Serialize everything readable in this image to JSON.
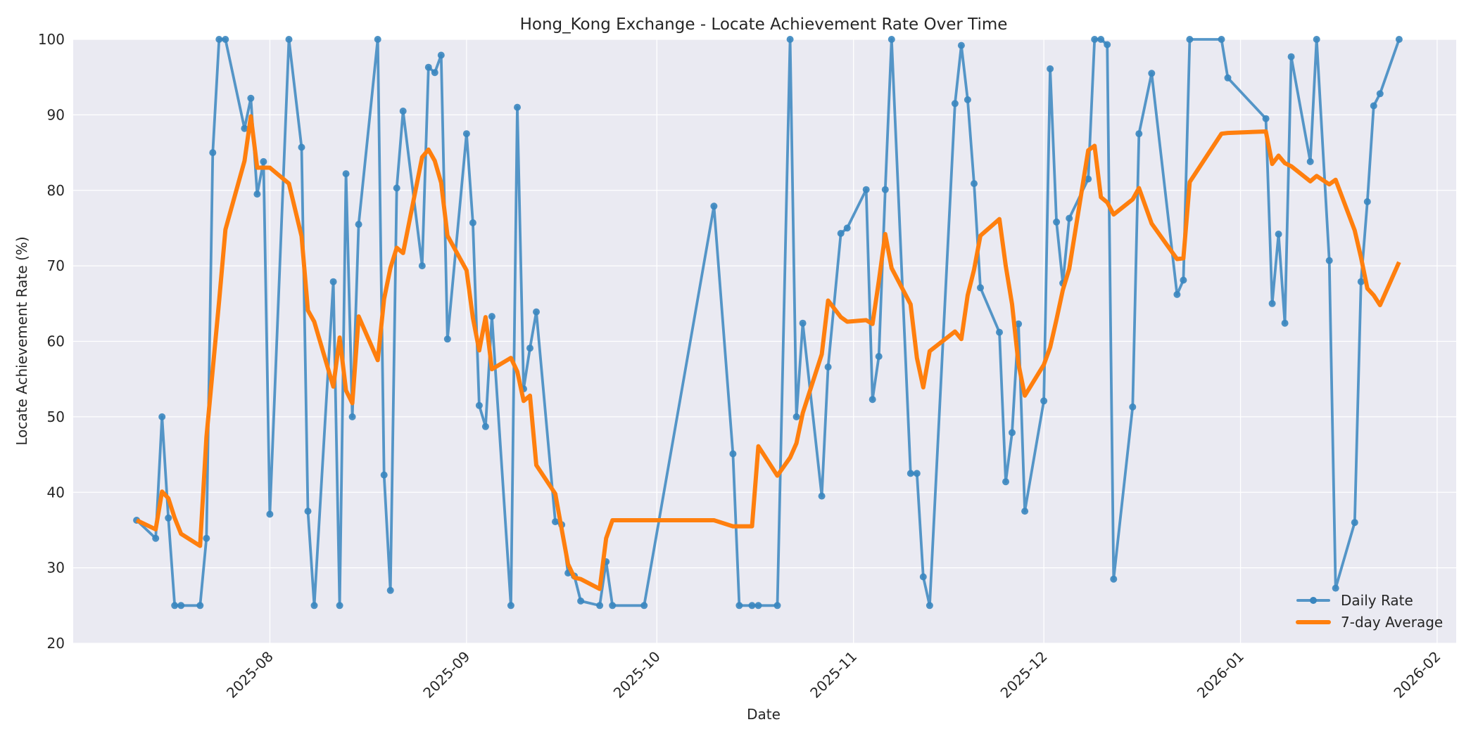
{
  "chart_data": {
    "type": "line",
    "title": "Hong_Kong Exchange - Locate Achievement Rate Over Time",
    "xlabel": "Date",
    "ylabel": "Locate Achievement Rate (%)",
    "ylim": [
      20,
      100
    ],
    "yticks": [
      20,
      30,
      40,
      50,
      60,
      70,
      80,
      90,
      100
    ],
    "xlim": [
      "2025-07-01",
      "2026-02-04"
    ],
    "xticks": [
      "2025-08",
      "2025-09",
      "2025-10",
      "2025-11",
      "2025-12",
      "2026-01",
      "2026-02"
    ],
    "xtick_dates": [
      "2025-08-01",
      "2025-09-01",
      "2025-10-01",
      "2025-11-01",
      "2025-12-01",
      "2026-01-01",
      "2026-02-01"
    ],
    "grid": true,
    "legend_position": "lower right",
    "series": [
      {
        "name": "Daily Rate",
        "color": "#3a86bf",
        "marker": "circle",
        "x": [
          "2025-07-11",
          "2025-07-14",
          "2025-07-15",
          "2025-07-16",
          "2025-07-17",
          "2025-07-18",
          "2025-07-21",
          "2025-07-22",
          "2025-07-23",
          "2025-07-24",
          "2025-07-25",
          "2025-07-28",
          "2025-07-29",
          "2025-07-30",
          "2025-07-31",
          "2025-08-01",
          "2025-08-04",
          "2025-08-06",
          "2025-08-07",
          "2025-08-08",
          "2025-08-11",
          "2025-08-12",
          "2025-08-13",
          "2025-08-14",
          "2025-08-15",
          "2025-08-18",
          "2025-08-19",
          "2025-08-20",
          "2025-08-21",
          "2025-08-22",
          "2025-08-25",
          "2025-08-26",
          "2025-08-27",
          "2025-08-28",
          "2025-08-29",
          "2025-09-01",
          "2025-09-02",
          "2025-09-03",
          "2025-09-04",
          "2025-09-05",
          "2025-09-08",
          "2025-09-09",
          "2025-09-10",
          "2025-09-11",
          "2025-09-12",
          "2025-09-15",
          "2025-09-16",
          "2025-09-17",
          "2025-09-18",
          "2025-09-19",
          "2025-09-22",
          "2025-09-23",
          "2025-09-24",
          "2025-09-29",
          "2025-10-10",
          "2025-10-13",
          "2025-10-14",
          "2025-10-16",
          "2025-10-17",
          "2025-10-20",
          "2025-10-22",
          "2025-10-23",
          "2025-10-24",
          "2025-10-27",
          "2025-10-28",
          "2025-10-30",
          "2025-10-31",
          "2025-11-03",
          "2025-11-04",
          "2025-11-05",
          "2025-11-06",
          "2025-11-07",
          "2025-11-10",
          "2025-11-11",
          "2025-11-12",
          "2025-11-13",
          "2025-11-17",
          "2025-11-18",
          "2025-11-19",
          "2025-11-20",
          "2025-11-21",
          "2025-11-24",
          "2025-11-25",
          "2025-11-26",
          "2025-11-27",
          "2025-11-28",
          "2025-12-01",
          "2025-12-02",
          "2025-12-03",
          "2025-12-04",
          "2025-12-05",
          "2025-12-08",
          "2025-12-09",
          "2025-12-10",
          "2025-12-11",
          "2025-12-12",
          "2025-12-15",
          "2025-12-16",
          "2025-12-18",
          "2025-12-22",
          "2025-12-23",
          "2025-12-24",
          "2025-12-29",
          "2025-12-30",
          "2026-01-05",
          "2026-01-06",
          "2026-01-07",
          "2026-01-08",
          "2026-01-09",
          "2026-01-12",
          "2026-01-13",
          "2026-01-15",
          "2026-01-16",
          "2026-01-19",
          "2026-01-20",
          "2026-01-21",
          "2026-01-22",
          "2026-01-23",
          "2026-01-26"
        ],
        "values": [
          36.3,
          33.9,
          50.0,
          36.6,
          25.0,
          25.0,
          25.0,
          33.9,
          85.0,
          100.0,
          100.0,
          88.2,
          92.2,
          79.5,
          83.8,
          37.1,
          100.0,
          85.7,
          37.5,
          25.0,
          67.9,
          25.0,
          82.2,
          50.0,
          75.5,
          100.0,
          42.3,
          27.0,
          80.3,
          90.5,
          70.0,
          96.3,
          95.6,
          97.9,
          60.3,
          87.5,
          75.7,
          51.5,
          48.7,
          63.3,
          25.0,
          91.0,
          53.7,
          59.1,
          63.9,
          36.1,
          35.7,
          29.3,
          28.9,
          25.6,
          25.0,
          30.8,
          25.0,
          25.0,
          77.9,
          45.1,
          25.0,
          25.0,
          25.0,
          25.0,
          100.0,
          50.0,
          62.4,
          39.5,
          56.6,
          74.3,
          75.0,
          80.1,
          52.3,
          58.0,
          80.1,
          100.0,
          42.5,
          42.5,
          28.8,
          25.0,
          91.5,
          99.2,
          92.0,
          80.9,
          67.1,
          61.2,
          41.4,
          47.9,
          62.3,
          37.5,
          52.1,
          96.1,
          75.8,
          67.7,
          76.3,
          81.5,
          100.0,
          100.0,
          99.3,
          28.5,
          51.3,
          87.5,
          95.5,
          66.2,
          68.1,
          100.0,
          100.0,
          94.9,
          89.5,
          65.0,
          74.2,
          62.4,
          97.7,
          83.8,
          100.0,
          70.7,
          27.3,
          36.0,
          67.9,
          78.5,
          91.2,
          92.8,
          100.0
        ]
      },
      {
        "name": "7-day Average",
        "color": "#ff7f0e",
        "marker": "none",
        "x": [
          "2025-07-11",
          "2025-07-14",
          "2025-07-15",
          "2025-07-16",
          "2025-07-17",
          "2025-07-18",
          "2025-07-21",
          "2025-07-22",
          "2025-07-23",
          "2025-07-24",
          "2025-07-25",
          "2025-07-28",
          "2025-07-29",
          "2025-07-30",
          "2025-07-31",
          "2025-08-01",
          "2025-08-04",
          "2025-08-06",
          "2025-08-07",
          "2025-08-08",
          "2025-08-11",
          "2025-08-12",
          "2025-08-13",
          "2025-08-14",
          "2025-08-15",
          "2025-08-18",
          "2025-08-19",
          "2025-08-20",
          "2025-08-21",
          "2025-08-22",
          "2025-08-25",
          "2025-08-26",
          "2025-08-27",
          "2025-08-28",
          "2025-08-29",
          "2025-09-01",
          "2025-09-02",
          "2025-09-03",
          "2025-09-04",
          "2025-09-05",
          "2025-09-08",
          "2025-09-09",
          "2025-09-10",
          "2025-09-11",
          "2025-09-12",
          "2025-09-15",
          "2025-09-16",
          "2025-09-17",
          "2025-09-18",
          "2025-09-19",
          "2025-09-22",
          "2025-09-23",
          "2025-09-24",
          "2025-09-29",
          "2025-10-10",
          "2025-10-13",
          "2025-10-14",
          "2025-10-16",
          "2025-10-17",
          "2025-10-20",
          "2025-10-22",
          "2025-10-23",
          "2025-10-24",
          "2025-10-27",
          "2025-10-28",
          "2025-10-30",
          "2025-10-31",
          "2025-11-03",
          "2025-11-04",
          "2025-11-05",
          "2025-11-06",
          "2025-11-07",
          "2025-11-10",
          "2025-11-11",
          "2025-11-12",
          "2025-11-13",
          "2025-11-17",
          "2025-11-18",
          "2025-11-19",
          "2025-11-20",
          "2025-11-21",
          "2025-11-24",
          "2025-11-25",
          "2025-11-26",
          "2025-11-27",
          "2025-11-28",
          "2025-12-01",
          "2025-12-02",
          "2025-12-03",
          "2025-12-04",
          "2025-12-05",
          "2025-12-08",
          "2025-12-09",
          "2025-12-10",
          "2025-12-11",
          "2025-12-12",
          "2025-12-15",
          "2025-12-16",
          "2025-12-18",
          "2025-12-22",
          "2025-12-23",
          "2025-12-24",
          "2025-12-29",
          "2025-12-30",
          "2026-01-05",
          "2026-01-06",
          "2026-01-07",
          "2026-01-08",
          "2026-01-09",
          "2026-01-12",
          "2026-01-13",
          "2026-01-15",
          "2026-01-16",
          "2026-01-19",
          "2026-01-20",
          "2026-01-21",
          "2026-01-22",
          "2026-01-23",
          "2026-01-26"
        ],
        "values": [
          36.3,
          35.1,
          40.1,
          39.2,
          36.6,
          34.5,
          32.9,
          47.3,
          56.3,
          65.3,
          74.8,
          83.9,
          89.8,
          83.0,
          83.0,
          83.0,
          80.9,
          73.9,
          64.1,
          62.6,
          54.0,
          60.5,
          53.5,
          51.8,
          63.3,
          57.5,
          65.6,
          69.7,
          72.4,
          71.7,
          84.4,
          85.4,
          83.9,
          81.0,
          74.0,
          69.4,
          63.1,
          58.8,
          63.2,
          56.3,
          57.8,
          56.0,
          52.1,
          52.8,
          43.6,
          39.8,
          35.1,
          30.5,
          28.7,
          28.5,
          27.2,
          33.9,
          36.3,
          36.3,
          36.3,
          35.5,
          35.5,
          35.5,
          46.1,
          42.2,
          44.6,
          46.5,
          50.5,
          58.3,
          65.4,
          63.2,
          62.6,
          62.8,
          62.3,
          68.0,
          74.2,
          69.7,
          64.9,
          57.8,
          53.9,
          58.7,
          61.3,
          60.3,
          66.1,
          69.5,
          74.0,
          76.2,
          70.0,
          64.9,
          57.0,
          52.8,
          56.9,
          59.2,
          62.9,
          66.8,
          69.6,
          85.3,
          85.9,
          79.1,
          78.4,
          76.8,
          78.8,
          80.3,
          75.6,
          70.9,
          71.0,
          81.1,
          87.5,
          87.6,
          87.8,
          83.5,
          84.6,
          83.6,
          83.2,
          81.2,
          81.9,
          80.8,
          81.4,
          74.7,
          71.1,
          67.0,
          66.1,
          64.8,
          70.5
        ]
      }
    ]
  },
  "legend": {
    "items": [
      {
        "label": "Daily Rate",
        "color": "#3a86bf",
        "marker": "circle"
      },
      {
        "label": "7-day Average",
        "color": "#ff7f0e",
        "marker": "none"
      }
    ]
  }
}
